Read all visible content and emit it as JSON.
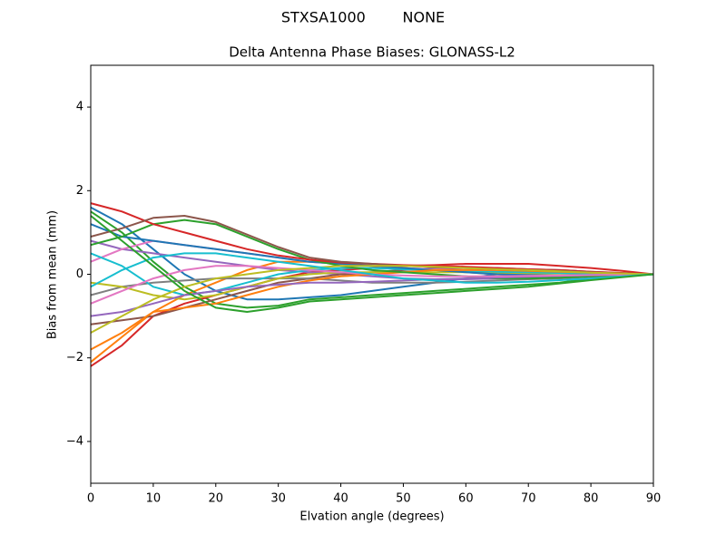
{
  "chart_data": {
    "type": "line",
    "suptitle": "STXSA1000        NONE",
    "title": "Delta Antenna Phase Biases: GLONASS-L2",
    "x_label": "Elvation angle (degrees)",
    "y_label": "Bias from mean (mm)",
    "x": [
      0,
      5,
      10,
      15,
      20,
      25,
      30,
      35,
      40,
      45,
      50,
      55,
      60,
      65,
      70,
      75,
      80,
      85,
      90
    ],
    "xlim": [
      0,
      90
    ],
    "xticks": [
      0,
      10,
      20,
      30,
      40,
      50,
      60,
      70,
      80,
      90
    ],
    "ylim": [
      -5,
      5
    ],
    "yticks": [
      {
        "value": -4,
        "label": "−4"
      },
      {
        "value": -2,
        "label": "−2"
      },
      0,
      2,
      4
    ],
    "series": [
      {
        "color": "#1f77b4",
        "values": [
          1.6,
          1.2,
          0.6,
          0.0,
          -0.4,
          -0.6,
          -0.6,
          -0.55,
          -0.5,
          -0.4,
          -0.3,
          -0.2,
          -0.1,
          0.0,
          0.05,
          0.05,
          0.03,
          0.01,
          0
        ]
      },
      {
        "color": "#ff7f0e",
        "values": [
          -2.1,
          -1.5,
          -0.9,
          -0.5,
          -0.2,
          0.1,
          0.3,
          0.3,
          0.25,
          0.2,
          0.15,
          0.1,
          0.05,
          0.0,
          -0.05,
          -0.05,
          -0.03,
          -0.01,
          0
        ]
      },
      {
        "color": "#2ca02c",
        "values": [
          1.5,
          1.0,
          0.3,
          -0.3,
          -0.7,
          -0.8,
          -0.75,
          -0.6,
          -0.55,
          -0.5,
          -0.45,
          -0.4,
          -0.35,
          -0.3,
          -0.25,
          -0.2,
          -0.1,
          -0.05,
          0
        ]
      },
      {
        "color": "#d62728",
        "values": [
          -2.2,
          -1.7,
          -1.0,
          -0.7,
          -0.5,
          -0.3,
          -0.1,
          0.05,
          0.1,
          0.15,
          0.2,
          0.22,
          0.25,
          0.25,
          0.25,
          0.2,
          0.15,
          0.08,
          0
        ]
      },
      {
        "color": "#9467bd",
        "values": [
          0.8,
          0.6,
          0.5,
          0.4,
          0.3,
          0.2,
          0.1,
          0.05,
          0.0,
          -0.05,
          -0.1,
          -0.12,
          -0.12,
          -0.1,
          -0.08,
          -0.05,
          -0.03,
          -0.01,
          0
        ]
      },
      {
        "color": "#8c564b",
        "values": [
          -1.2,
          -1.1,
          -1.0,
          -0.8,
          -0.6,
          -0.4,
          -0.2,
          -0.1,
          0.0,
          0.05,
          0.1,
          0.15,
          0.15,
          0.15,
          0.12,
          0.1,
          0.06,
          0.03,
          0
        ]
      },
      {
        "color": "#e377c2",
        "values": [
          0.3,
          0.6,
          0.8,
          0.7,
          0.6,
          0.5,
          0.4,
          0.3,
          0.25,
          0.2,
          0.15,
          0.12,
          0.1,
          0.08,
          0.06,
          0.04,
          0.02,
          0.01,
          0
        ]
      },
      {
        "color": "#7f7f7f",
        "values": [
          -0.5,
          -0.3,
          -0.2,
          -0.15,
          -0.1,
          -0.1,
          -0.1,
          -0.1,
          -0.15,
          -0.2,
          -0.2,
          -0.2,
          -0.18,
          -0.15,
          -0.12,
          -0.1,
          -0.06,
          -0.03,
          0
        ]
      },
      {
        "color": "#bcbd22",
        "values": [
          -0.2,
          -0.3,
          -0.5,
          -0.6,
          -0.5,
          -0.3,
          -0.1,
          0.0,
          0.05,
          0.05,
          0.05,
          0.05,
          0.05,
          0.03,
          0.02,
          0.02,
          0.01,
          0.0,
          0
        ]
      },
      {
        "color": "#17becf",
        "values": [
          0.5,
          0.2,
          -0.3,
          -0.5,
          -0.4,
          -0.2,
          0.0,
          0.1,
          0.15,
          0.15,
          0.12,
          0.1,
          0.08,
          0.06,
          0.05,
          0.03,
          0.02,
          0.01,
          0
        ]
      },
      {
        "color": "#1f77b4",
        "values": [
          1.2,
          0.9,
          0.8,
          0.7,
          0.6,
          0.5,
          0.4,
          0.3,
          0.25,
          0.2,
          0.15,
          0.1,
          0.05,
          0.0,
          -0.02,
          -0.03,
          -0.02,
          -0.01,
          0
        ]
      },
      {
        "color": "#ff7f0e",
        "values": [
          -1.8,
          -1.4,
          -0.9,
          -0.8,
          -0.7,
          -0.5,
          -0.3,
          -0.15,
          -0.05,
          0.0,
          0.05,
          0.1,
          0.1,
          0.1,
          0.08,
          0.06,
          0.04,
          0.02,
          0
        ]
      },
      {
        "color": "#2ca02c",
        "values": [
          0.7,
          0.9,
          1.2,
          1.3,
          1.2,
          0.9,
          0.6,
          0.35,
          0.2,
          0.1,
          0.05,
          0.0,
          -0.05,
          -0.1,
          -0.1,
          -0.08,
          -0.05,
          -0.02,
          0
        ]
      },
      {
        "color": "#d62728",
        "values": [
          1.7,
          1.5,
          1.2,
          1.0,
          0.8,
          0.6,
          0.45,
          0.35,
          0.28,
          0.25,
          0.22,
          0.2,
          0.18,
          0.15,
          0.12,
          0.1,
          0.06,
          0.03,
          0
        ]
      },
      {
        "color": "#9467bd",
        "values": [
          -1.0,
          -0.9,
          -0.7,
          -0.5,
          -0.4,
          -0.3,
          -0.25,
          -0.2,
          -0.2,
          -0.18,
          -0.15,
          -0.12,
          -0.1,
          -0.08,
          -0.06,
          -0.04,
          -0.02,
          -0.01,
          0
        ]
      },
      {
        "color": "#8c564b",
        "values": [
          0.9,
          1.1,
          1.35,
          1.4,
          1.25,
          0.95,
          0.65,
          0.4,
          0.3,
          0.25,
          0.2,
          0.18,
          0.15,
          0.12,
          0.1,
          0.08,
          0.05,
          0.02,
          0
        ]
      },
      {
        "color": "#e377c2",
        "values": [
          -0.7,
          -0.4,
          -0.1,
          0.1,
          0.2,
          0.2,
          0.15,
          0.1,
          0.05,
          0.0,
          -0.03,
          -0.05,
          -0.05,
          -0.05,
          -0.04,
          -0.03,
          -0.02,
          -0.01,
          0
        ]
      },
      {
        "color": "#bcbd22",
        "values": [
          -1.4,
          -1.0,
          -0.6,
          -0.3,
          -0.1,
          0.0,
          0.1,
          0.15,
          0.2,
          0.2,
          0.2,
          0.18,
          0.15,
          0.12,
          0.1,
          0.07,
          0.04,
          0.02,
          0
        ]
      },
      {
        "color": "#17becf",
        "values": [
          -0.3,
          0.1,
          0.4,
          0.5,
          0.5,
          0.4,
          0.3,
          0.2,
          0.1,
          0.0,
          -0.1,
          -0.15,
          -0.2,
          -0.2,
          -0.18,
          -0.14,
          -0.1,
          -0.05,
          0
        ]
      },
      {
        "color": "#2ca02c",
        "values": [
          1.4,
          0.8,
          0.2,
          -0.4,
          -0.8,
          -0.9,
          -0.8,
          -0.65,
          -0.6,
          -0.55,
          -0.5,
          -0.45,
          -0.4,
          -0.35,
          -0.3,
          -0.22,
          -0.14,
          -0.07,
          0
        ]
      }
    ]
  }
}
